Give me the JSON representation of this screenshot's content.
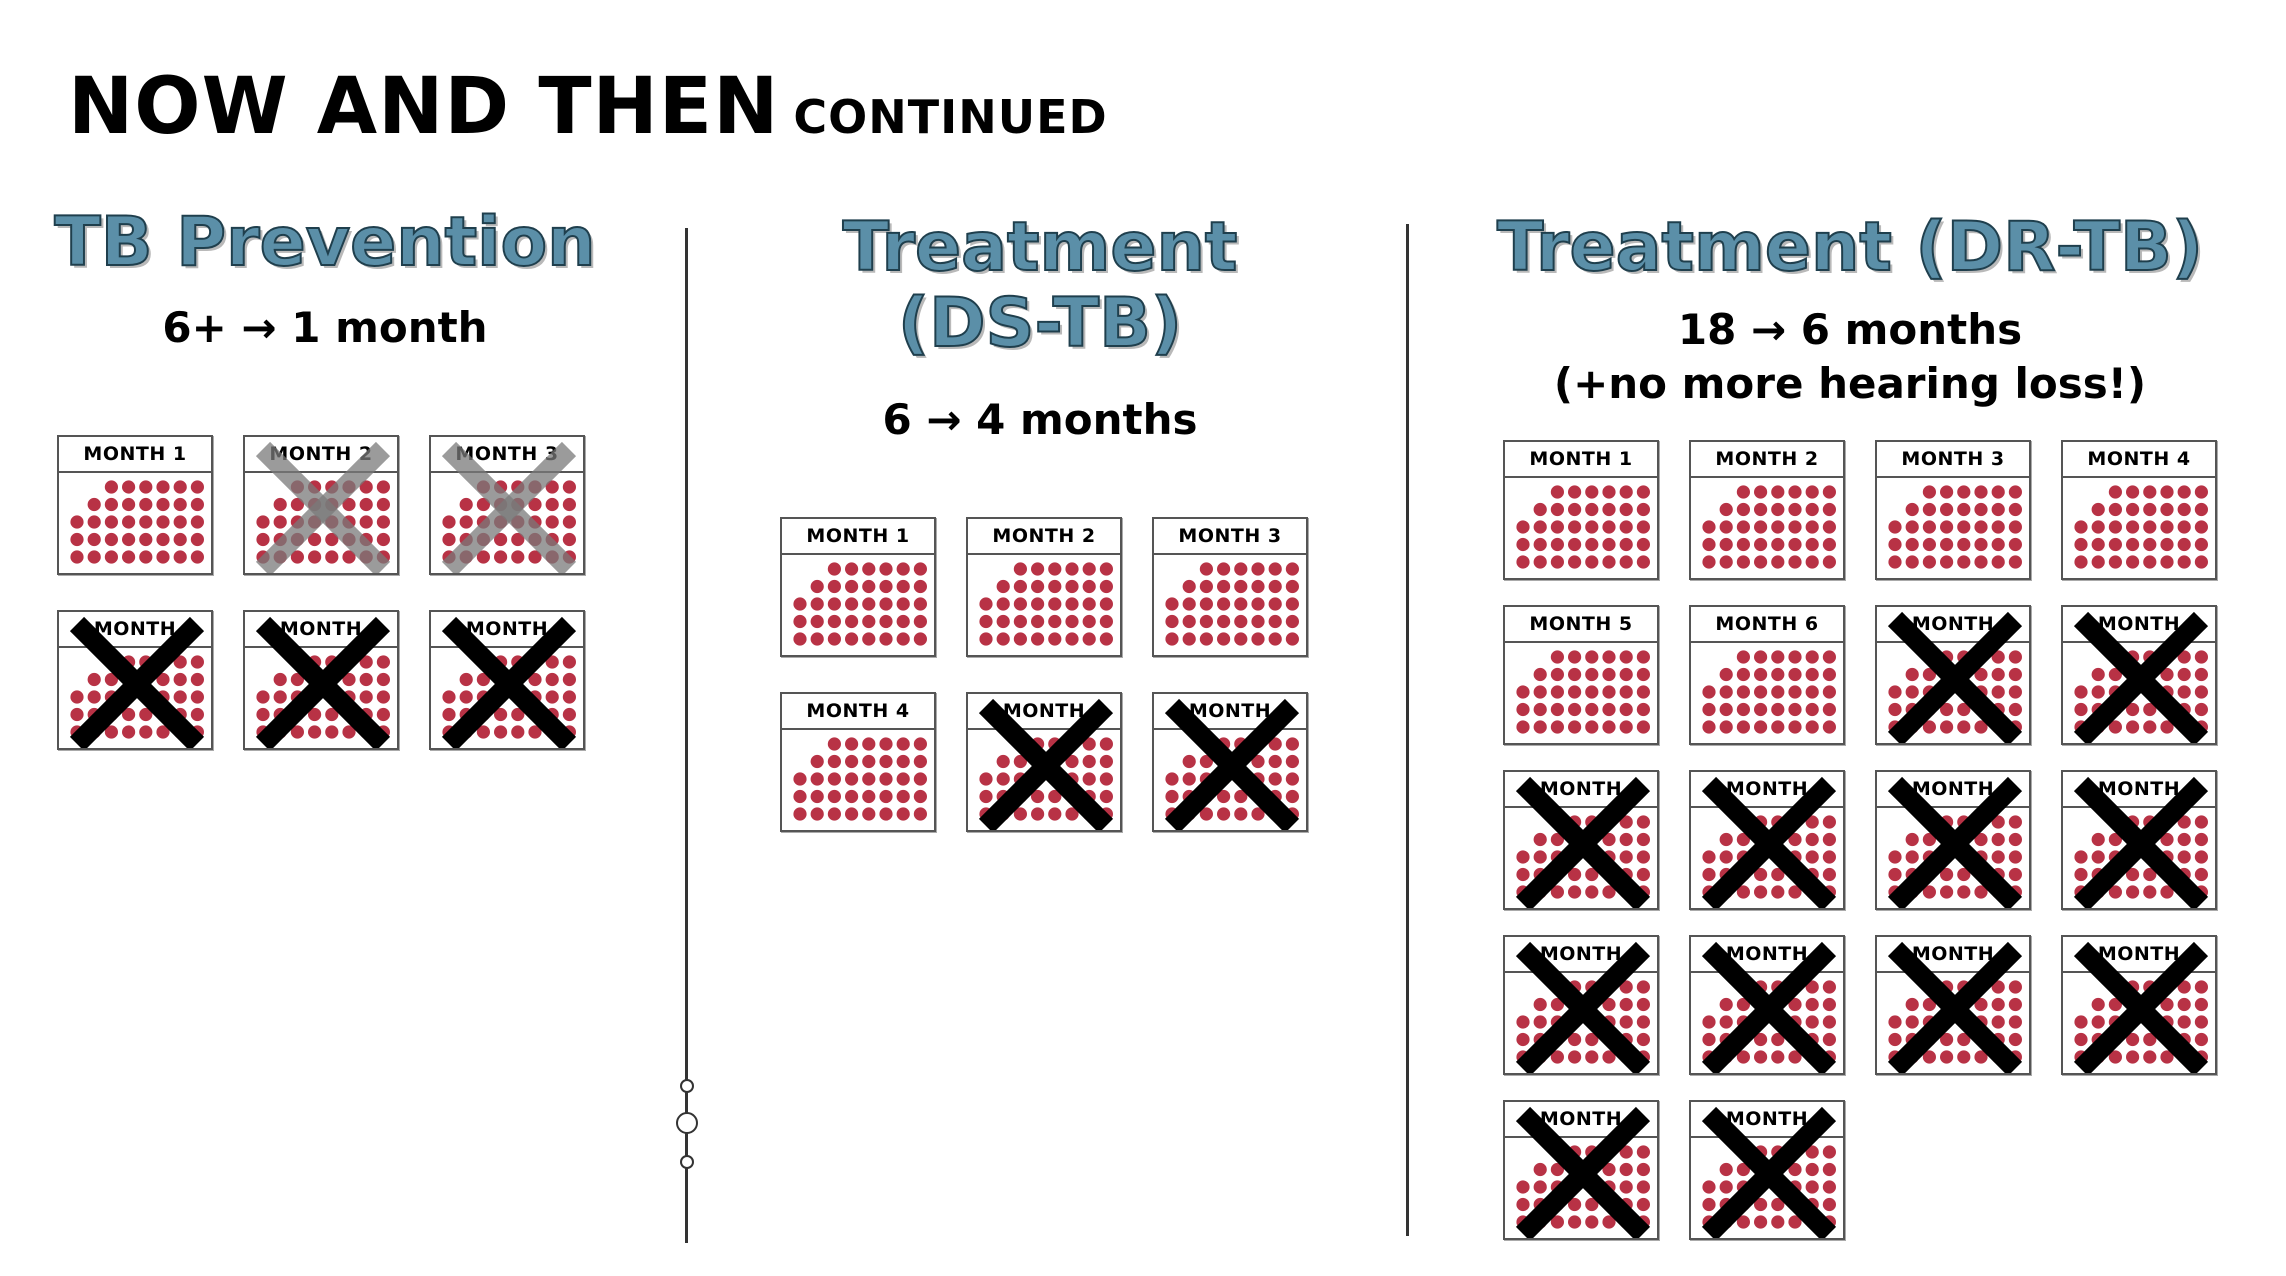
{
  "title": {
    "main": "NOW AND THEN",
    "suffix": "CONTINUED"
  },
  "colors": {
    "dot": "#b83245",
    "heading_fill": "#5b8fa8",
    "heading_stroke": "#1f3f4d",
    "cross_black": "#000000",
    "cross_gray": "#7a7a7a"
  },
  "columns": [
    {
      "heading": "TB Prevention",
      "subtitle": "6+ → 1 month",
      "cards": [
        {
          "label": "MONTH 1",
          "crossed": "none"
        },
        {
          "label": "MONTH 2",
          "crossed": "gray"
        },
        {
          "label": "MONTH 3",
          "crossed": "gray"
        },
        {
          "label": "MONTH",
          "crossed": "black"
        },
        {
          "label": "MONTH",
          "crossed": "black"
        },
        {
          "label": "MONTH",
          "crossed": "black"
        }
      ]
    },
    {
      "heading": "Treatment (DS-TB)",
      "subtitle": "6 → 4 months",
      "cards": [
        {
          "label": "MONTH 1",
          "crossed": "none"
        },
        {
          "label": "MONTH 2",
          "crossed": "none"
        },
        {
          "label": "MONTH 3",
          "crossed": "none"
        },
        {
          "label": "MONTH 4",
          "crossed": "none"
        },
        {
          "label": "MONTH",
          "crossed": "black"
        },
        {
          "label": "MONTH",
          "crossed": "black"
        }
      ]
    },
    {
      "heading": "Treatment (DR-TB)",
      "subtitle": "18 → 6 months",
      "subtitle2": "(+no more hearing loss!)",
      "cards": [
        {
          "label": "MONTH 1",
          "crossed": "none"
        },
        {
          "label": "MONTH 2",
          "crossed": "none"
        },
        {
          "label": "MONTH 3",
          "crossed": "none"
        },
        {
          "label": "MONTH 4",
          "crossed": "none"
        },
        {
          "label": "MONTH 5",
          "crossed": "none"
        },
        {
          "label": "MONTH 6",
          "crossed": "none"
        },
        {
          "label": "MONTH",
          "crossed": "black"
        },
        {
          "label": "MONTH",
          "crossed": "black"
        },
        {
          "label": "MONTH",
          "crossed": "black"
        },
        {
          "label": "MONTH",
          "crossed": "black"
        },
        {
          "label": "MONTH",
          "crossed": "black"
        },
        {
          "label": "MONTH",
          "crossed": "black"
        },
        {
          "label": "MONTH",
          "crossed": "black"
        },
        {
          "label": "MONTH",
          "crossed": "black"
        },
        {
          "label": "MONTH",
          "crossed": "black"
        },
        {
          "label": "MONTH",
          "crossed": "black"
        },
        {
          "label": "MONTH",
          "crossed": "black"
        },
        {
          "label": "MONTH",
          "crossed": "black"
        }
      ]
    }
  ]
}
